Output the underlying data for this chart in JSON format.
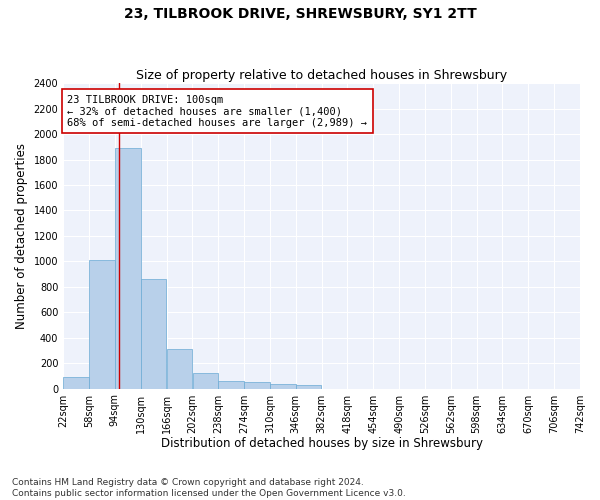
{
  "title": "23, TILBROOK DRIVE, SHREWSBURY, SY1 2TT",
  "subtitle": "Size of property relative to detached houses in Shrewsbury",
  "xlabel": "Distribution of detached houses by size in Shrewsbury",
  "ylabel": "Number of detached properties",
  "bar_color": "#b8d0ea",
  "bar_edge_color": "#6aaad4",
  "background_color": "#eef2fb",
  "grid_color": "#ffffff",
  "annotation_text": "23 TILBROOK DRIVE: 100sqm\n← 32% of detached houses are smaller (1,400)\n68% of semi-detached houses are larger (2,989) →",
  "vline_x": 100,
  "vline_color": "#cc0000",
  "bin_edges": [
    22,
    58,
    94,
    130,
    166,
    202,
    238,
    274,
    310,
    346,
    382,
    418,
    454,
    490,
    526,
    562,
    598,
    634,
    670,
    706,
    742
  ],
  "bar_heights": [
    95,
    1010,
    1890,
    860,
    315,
    120,
    60,
    50,
    35,
    25,
    0,
    0,
    0,
    0,
    0,
    0,
    0,
    0,
    0,
    0
  ],
  "xlim": [
    22,
    742
  ],
  "ylim": [
    0,
    2400
  ],
  "yticks": [
    0,
    200,
    400,
    600,
    800,
    1000,
    1200,
    1400,
    1600,
    1800,
    2000,
    2200,
    2400
  ],
  "footnote": "Contains HM Land Registry data © Crown copyright and database right 2024.\nContains public sector information licensed under the Open Government Licence v3.0.",
  "title_fontsize": 10,
  "subtitle_fontsize": 9,
  "xlabel_fontsize": 8.5,
  "ylabel_fontsize": 8.5,
  "tick_fontsize": 7,
  "annotation_fontsize": 7.5,
  "footnote_fontsize": 6.5
}
